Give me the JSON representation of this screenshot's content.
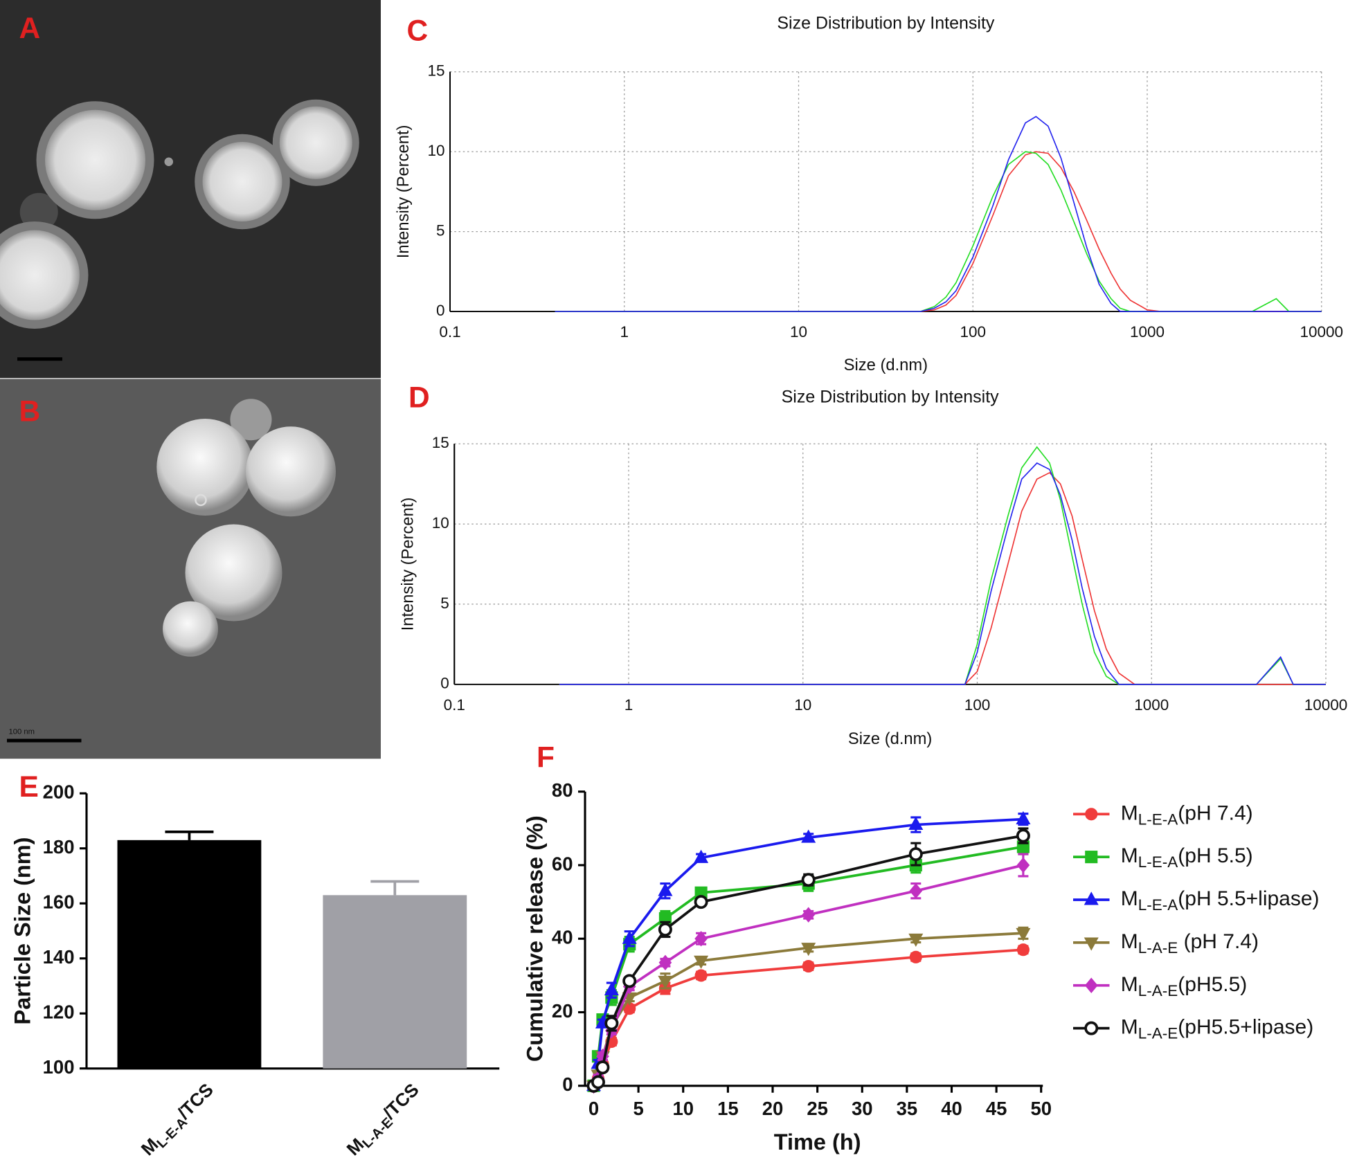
{
  "panel_labels": [
    "A",
    "B",
    "C",
    "D",
    "E",
    "F"
  ],
  "scale_bar_label": "100 nm",
  "chart_data": [
    {
      "type": "line",
      "title": "Size Distribution by Intensity",
      "x_label": "Size (d.nm)",
      "y_label": "Intensity (Percent)",
      "x_scale": "log",
      "grid": true,
      "xlim": [
        0.1,
        10000
      ],
      "xticks": [
        0.1,
        1,
        10,
        100,
        1000,
        10000
      ],
      "ylim": [
        0,
        15
      ],
      "yticks": [
        0,
        5,
        10,
        15
      ],
      "x": [
        0.4,
        50,
        60,
        70,
        80,
        100,
        130,
        160,
        200,
        230,
        270,
        320,
        380,
        450,
        530,
        620,
        700,
        800,
        1000,
        1200,
        4000,
        5500,
        6500,
        10000
      ],
      "series": [
        {
          "color": "#ee3333",
          "values": [
            0,
            0,
            0.1,
            0.4,
            1.0,
            3.0,
            6.0,
            8.5,
            9.8,
            10.0,
            9.9,
            9.0,
            7.5,
            5.7,
            3.9,
            2.4,
            1.4,
            0.7,
            0.1,
            0,
            0,
            0,
            0,
            0
          ]
        },
        {
          "color": "#22dd22",
          "values": [
            0,
            0,
            0.3,
            0.9,
            1.8,
            4.1,
            7.2,
            9.2,
            10.0,
            9.9,
            9.2,
            7.6,
            5.6,
            3.6,
            1.9,
            0.8,
            0.2,
            0,
            0,
            0,
            0,
            0.8,
            0,
            0
          ]
        },
        {
          "color": "#2222ee",
          "values": [
            0,
            0,
            0.2,
            0.6,
            1.3,
            3.4,
            6.6,
            9.5,
            11.8,
            12.2,
            11.6,
            9.6,
            6.8,
            4.0,
            1.7,
            0.5,
            0,
            0,
            0,
            0,
            0,
            0,
            0,
            0
          ]
        }
      ]
    },
    {
      "type": "line",
      "title": "Size Distribution by Intensity",
      "x_label": "Size (d.nm)",
      "y_label": "Intensity (Percent)",
      "x_scale": "log",
      "grid": true,
      "xlim": [
        0.1,
        10000
      ],
      "xticks": [
        0.1,
        1,
        10,
        100,
        1000,
        10000
      ],
      "ylim": [
        0,
        15
      ],
      "yticks": [
        0,
        5,
        10,
        15
      ],
      "x": [
        0.4,
        85,
        100,
        120,
        150,
        180,
        220,
        260,
        300,
        350,
        400,
        470,
        550,
        650,
        800,
        4000,
        5500,
        6500,
        10000
      ],
      "series": [
        {
          "color": "#ee3333",
          "values": [
            0,
            0,
            0.8,
            3.5,
            7.5,
            10.8,
            12.8,
            13.2,
            12.5,
            10.5,
            7.8,
            4.6,
            2.2,
            0.7,
            0,
            0,
            0,
            0,
            0
          ]
        },
        {
          "color": "#22dd22",
          "values": [
            0,
            0,
            2.5,
            6.5,
            10.5,
            13.5,
            14.8,
            13.8,
            11.5,
            8.0,
            5.0,
            2.0,
            0.5,
            0,
            0,
            0,
            1.6,
            0,
            0
          ]
        },
        {
          "color": "#2222ee",
          "values": [
            0,
            0,
            2.0,
            5.8,
            9.8,
            12.8,
            13.8,
            13.4,
            11.8,
            9.0,
            6.0,
            3.0,
            1.0,
            0,
            0,
            0,
            1.7,
            0,
            0
          ]
        }
      ]
    },
    {
      "type": "bar",
      "y_label": "Particle Size (nm)",
      "ylim": [
        100,
        200
      ],
      "yticks": [
        100,
        120,
        140,
        160,
        180,
        200
      ],
      "categories": [
        "ML-E-A/TCS",
        "ML-A-E/TCS"
      ],
      "values": [
        183,
        163
      ],
      "errors": [
        3,
        5
      ],
      "colors": [
        "#000000",
        "#a0a0a6"
      ]
    },
    {
      "type": "line",
      "x_label": "Time (h)",
      "y_label": "Cumulative release (%)",
      "legend": "right",
      "xlim": [
        0,
        50
      ],
      "xticks": [
        0,
        5,
        10,
        15,
        20,
        25,
        30,
        35,
        40,
        45,
        50
      ],
      "ylim": [
        0,
        80
      ],
      "yticks": [
        0,
        20,
        40,
        60,
        80
      ],
      "x": [
        0,
        0.5,
        1,
        2,
        4,
        8,
        12,
        24,
        36,
        48
      ],
      "series": [
        {
          "name": "ML-E-A(pH 7.4)",
          "color": "#f03c3c",
          "marker": "circle",
          "values": [
            0,
            2,
            6,
            12,
            21,
            26.5,
            30,
            32.5,
            35,
            37
          ],
          "errors": [
            0,
            1,
            1,
            1,
            1,
            1.5,
            1,
            1,
            1,
            1
          ]
        },
        {
          "name": "ML-E-A(pH 5.5)",
          "color": "#22bb22",
          "marker": "square",
          "values": [
            0,
            8,
            18,
            24,
            38.5,
            45.5,
            52.5,
            55,
            60,
            65
          ],
          "errors": [
            0,
            1,
            1,
            2,
            2,
            2,
            1,
            2,
            2,
            2
          ]
        },
        {
          "name": "ML-E-A(pH 5.5+lipase)",
          "color": "#1a1aee",
          "marker": "triangle-up",
          "values": [
            0,
            6,
            17,
            26,
            40,
            53,
            62,
            67.5,
            71,
            72.5
          ],
          "errors": [
            0,
            1,
            1,
            2,
            2,
            2,
            1,
            1,
            2,
            1.5
          ]
        },
        {
          "name": "ML-A-E (pH 7.4)",
          "color": "#8b7a3a",
          "marker": "triangle-down",
          "values": [
            0,
            3,
            8,
            16,
            24,
            28.5,
            34,
            37.5,
            40,
            41.5
          ],
          "errors": [
            0,
            1,
            1,
            1,
            1,
            2,
            1,
            1,
            1,
            1.5
          ]
        },
        {
          "name": "ML-A-E(pH5.5)",
          "color": "#c030c0",
          "marker": "diamond",
          "values": [
            0,
            2,
            8,
            15,
            27,
            33.5,
            40,
            46.5,
            53,
            60
          ],
          "errors": [
            0,
            1,
            1,
            1,
            1,
            1,
            1.5,
            1,
            2,
            3
          ]
        },
        {
          "name": "ML-A-E(pH5.5+lipase)",
          "color": "#111111",
          "marker": "open-circle",
          "values": [
            0,
            1,
            5,
            17,
            28.5,
            42.5,
            50,
            56,
            63,
            68
          ],
          "errors": [
            0,
            1,
            1,
            2,
            1,
            2,
            1,
            1.5,
            3,
            2
          ]
        }
      ]
    }
  ]
}
